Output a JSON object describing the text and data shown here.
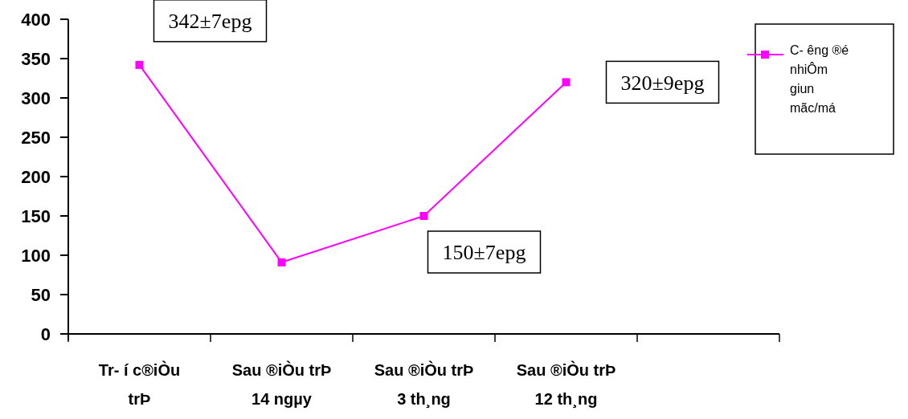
{
  "chart_data": {
    "type": "line",
    "categories": [
      "Tr- í c®iÒu trÞ",
      "Sau ®iÒu trÞ 14 ngµy",
      "Sau ®iÒu trÞ 3 th¸ng",
      "Sau ®iÒu trÞ 12 th¸ng",
      null
    ],
    "series": [
      {
        "name": "C- êng ®é nhiÔm giun mãc/má",
        "color": "#ff00ff",
        "values": [
          342,
          91,
          150,
          320,
          null
        ]
      }
    ],
    "ylim": [
      0,
      400
    ],
    "yticks": [
      0,
      50,
      100,
      150,
      200,
      250,
      300,
      350,
      400
    ],
    "annotations": [
      {
        "text": "342±7epg",
        "x": "Tr- í c®iÒu trÞ",
        "y": 342
      },
      {
        "text": "150±7epg",
        "x": "Sau ®iÒu trÞ 3 th¸ng",
        "y": 150
      },
      {
        "text": "320±9epg",
        "x": "Sau ®iÒu trÞ 12 th¸ng",
        "y": 320
      }
    ],
    "marker": "square",
    "legend": "right",
    "grid": false
  }
}
